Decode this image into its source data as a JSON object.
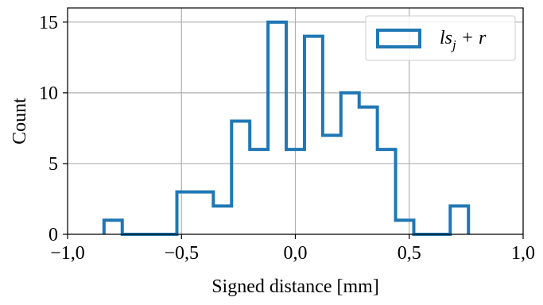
{
  "chart_data": {
    "type": "histogram",
    "title": "",
    "xlabel": "Signed distance [mm]",
    "ylabel": "Count",
    "xlim": [
      -1.0,
      1.0
    ],
    "ylim": [
      0,
      16
    ],
    "x_ticks": [
      -1.0,
      -0.5,
      0.0,
      0.5,
      1.0
    ],
    "x_tick_labels": [
      "−1,0",
      "−0,5",
      "0,0",
      "0,5",
      "1,0"
    ],
    "y_ticks": [
      0,
      5,
      10,
      15
    ],
    "y_tick_labels": [
      "0",
      "5",
      "10",
      "15"
    ],
    "grid": true,
    "legend_position": "top-right",
    "series": [
      {
        "name": "ls_j + r",
        "color": "#1f77b4",
        "histtype": "step",
        "bin_edges": [
          -0.84,
          -0.76,
          -0.68,
          -0.6,
          -0.52,
          -0.44,
          -0.36,
          -0.28,
          -0.2,
          -0.12,
          -0.04,
          0.04,
          0.12,
          0.2,
          0.28,
          0.36,
          0.44,
          0.52,
          0.6,
          0.68,
          0.76
        ],
        "counts": [
          1,
          0,
          0,
          0,
          3,
          3,
          2,
          8,
          6,
          15,
          6,
          14,
          7,
          10,
          9,
          6,
          1,
          0,
          0,
          2
        ]
      }
    ]
  },
  "legend": {
    "label_main": "ls",
    "label_sub": "j",
    "label_tail": " + r"
  }
}
